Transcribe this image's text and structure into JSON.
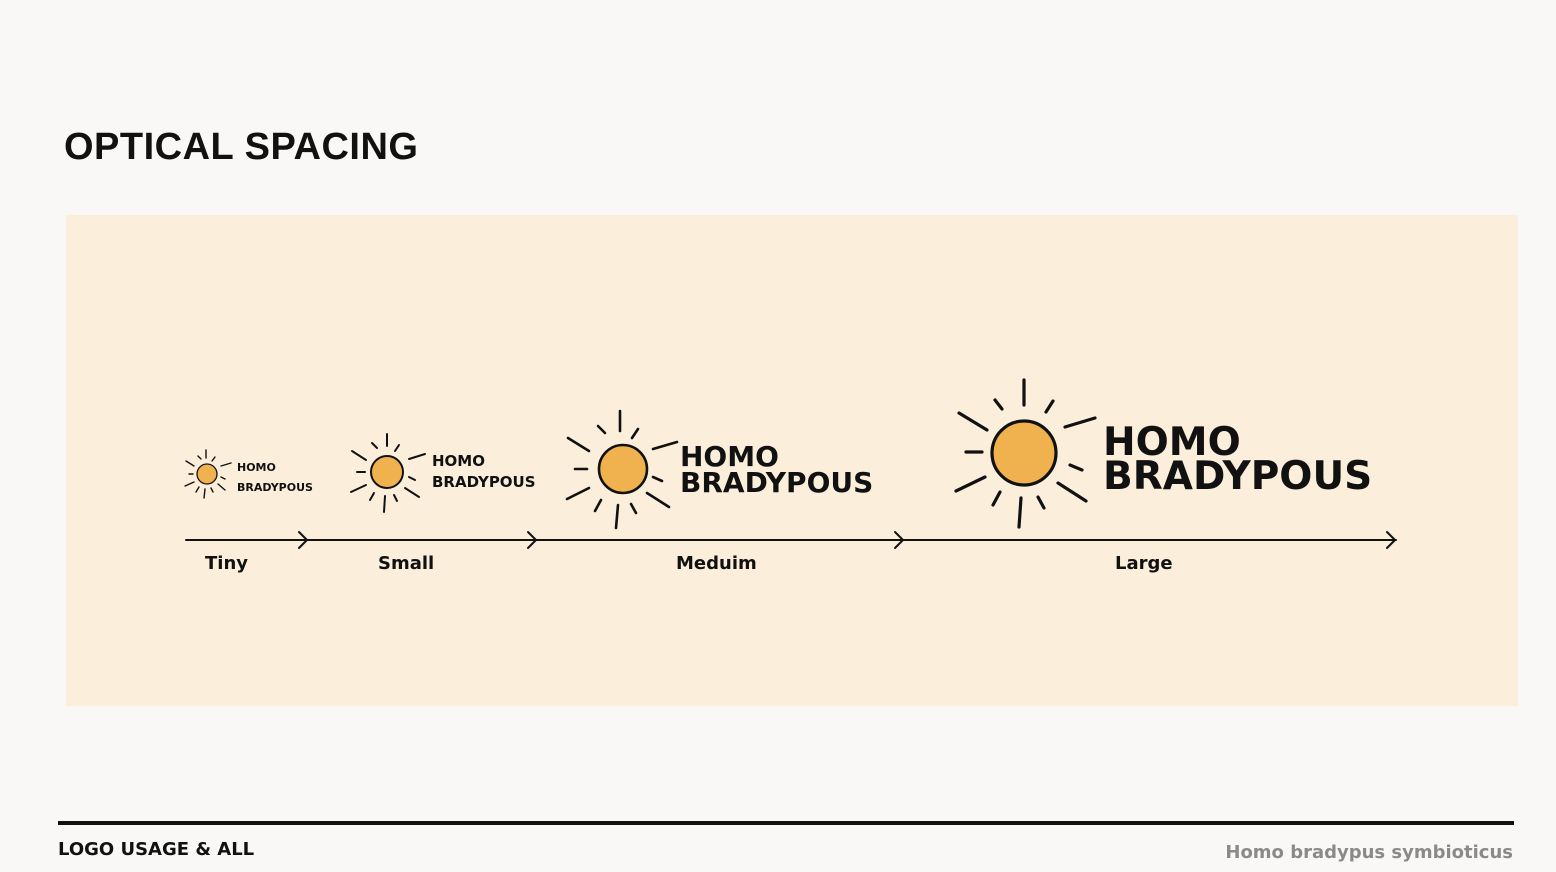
{
  "page": {
    "title": "OPTICAL SPACING"
  },
  "logo": {
    "line1": "HOMO",
    "line2": "BRADYPOUS",
    "sun_color": "#f0b24e",
    "ink_color": "#111111",
    "icon": "sun-icon"
  },
  "scale": {
    "labels": [
      "Tiny",
      "Small",
      "Meduim",
      "Large"
    ]
  },
  "colors": {
    "panel": "#fbefdc",
    "background": "#f9f8f6",
    "secondary_text": "#8a8a8a"
  },
  "footer": {
    "left": "LOGO USAGE & ALL",
    "right": "Homo bradypus symbioticus"
  }
}
